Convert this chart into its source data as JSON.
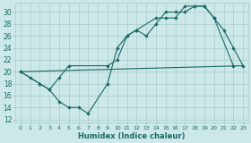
{
  "xlabel": "Humidex (Indice chaleur)",
  "bg_color": "#cce8e8",
  "grid_color": "#aacccc",
  "line_color": "#1a6868",
  "xlim": [
    -0.5,
    23.5
  ],
  "ylim": [
    11.5,
    31.5
  ],
  "xticks": [
    0,
    1,
    2,
    3,
    4,
    5,
    6,
    7,
    8,
    9,
    10,
    11,
    12,
    13,
    14,
    15,
    16,
    17,
    18,
    19,
    20,
    21,
    22,
    23
  ],
  "yticks": [
    12,
    14,
    16,
    18,
    20,
    22,
    24,
    26,
    28,
    30
  ],
  "series1": [
    [
      0,
      20
    ],
    [
      1,
      19
    ],
    [
      2,
      18
    ],
    [
      3,
      17
    ],
    [
      4,
      15
    ],
    [
      5,
      14
    ],
    [
      6,
      14
    ],
    [
      7,
      13
    ],
    [
      9,
      18
    ],
    [
      10,
      24
    ],
    [
      11,
      26
    ],
    [
      12,
      27
    ],
    [
      13,
      26
    ],
    [
      14,
      28
    ],
    [
      15,
      30
    ],
    [
      16,
      30
    ],
    [
      17,
      30
    ],
    [
      18,
      31
    ],
    [
      19,
      31
    ],
    [
      20,
      29
    ],
    [
      21,
      27
    ],
    [
      22,
      24
    ],
    [
      23,
      21
    ]
  ],
  "series2": [
    [
      0,
      20
    ],
    [
      2,
      18
    ],
    [
      3,
      17
    ],
    [
      4,
      19
    ],
    [
      5,
      21
    ],
    [
      9,
      21
    ],
    [
      10,
      22
    ],
    [
      11,
      26
    ],
    [
      12,
      27
    ],
    [
      14,
      29
    ],
    [
      15,
      29
    ],
    [
      16,
      29
    ],
    [
      17,
      31
    ],
    [
      18,
      31
    ],
    [
      19,
      31
    ],
    [
      20,
      29
    ],
    [
      22,
      21
    ]
  ],
  "series3": [
    [
      0,
      20
    ],
    [
      23,
      21
    ]
  ]
}
